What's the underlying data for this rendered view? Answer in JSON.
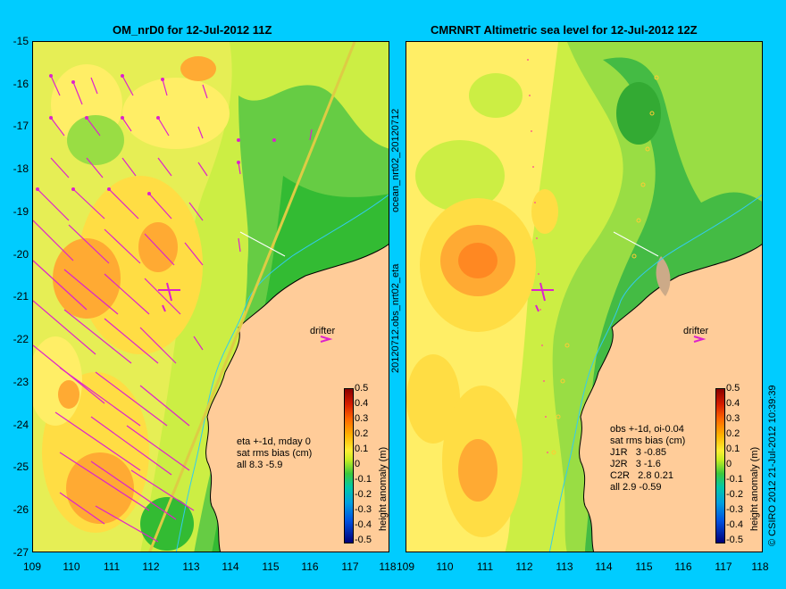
{
  "left_panel": {
    "title": "OM_nrD0 for 12-Jul-2012 11Z",
    "info": [
      "eta +-1d, mday 0",
      "sat rms bias (cm)",
      "all 8.3 -5.9"
    ],
    "drifter_label": "drifter"
  },
  "right_panel": {
    "title": "CMRNRT Altimetric sea level  for 12-Jul-2012 12Z",
    "info": [
      "obs +-1d, oi-0.04",
      "sat rms bias (cm)",
      "J1R   3 -0.85",
      "J2R   3 -1.6",
      "C2R   2.8 0.21",
      "all 2.9 -0.59"
    ],
    "drifter_label": "drifter"
  },
  "axes": {
    "lat_ticks": [
      "-15",
      "-16",
      "-17",
      "-18",
      "-19",
      "-20",
      "-21",
      "-22",
      "-23",
      "-24",
      "-25",
      "-26",
      "-27"
    ],
    "lon_ticks": [
      "109",
      "110",
      "111",
      "112",
      "113",
      "114",
      "115",
      "116",
      "117",
      "118"
    ]
  },
  "colorbar": {
    "label": "height anomaly (m)",
    "ticks": [
      "0.5",
      "0.4",
      "0.3",
      "0.2",
      "0.1",
      "0",
      "-0.1",
      "-0.2",
      "-0.3",
      "-0.4",
      "-0.5"
    ]
  },
  "side_text": {
    "left": "20120712.obs_nrt02_eta",
    "left_top": "ocean_nrt02_20120712",
    "right": "© CSIRO 2012   21-Jul-2012 10:39:39"
  },
  "colors": {
    "background": "#00ccff",
    "land": "#ffcc99",
    "arrow": "#dd22cc",
    "coast": "#000000"
  }
}
